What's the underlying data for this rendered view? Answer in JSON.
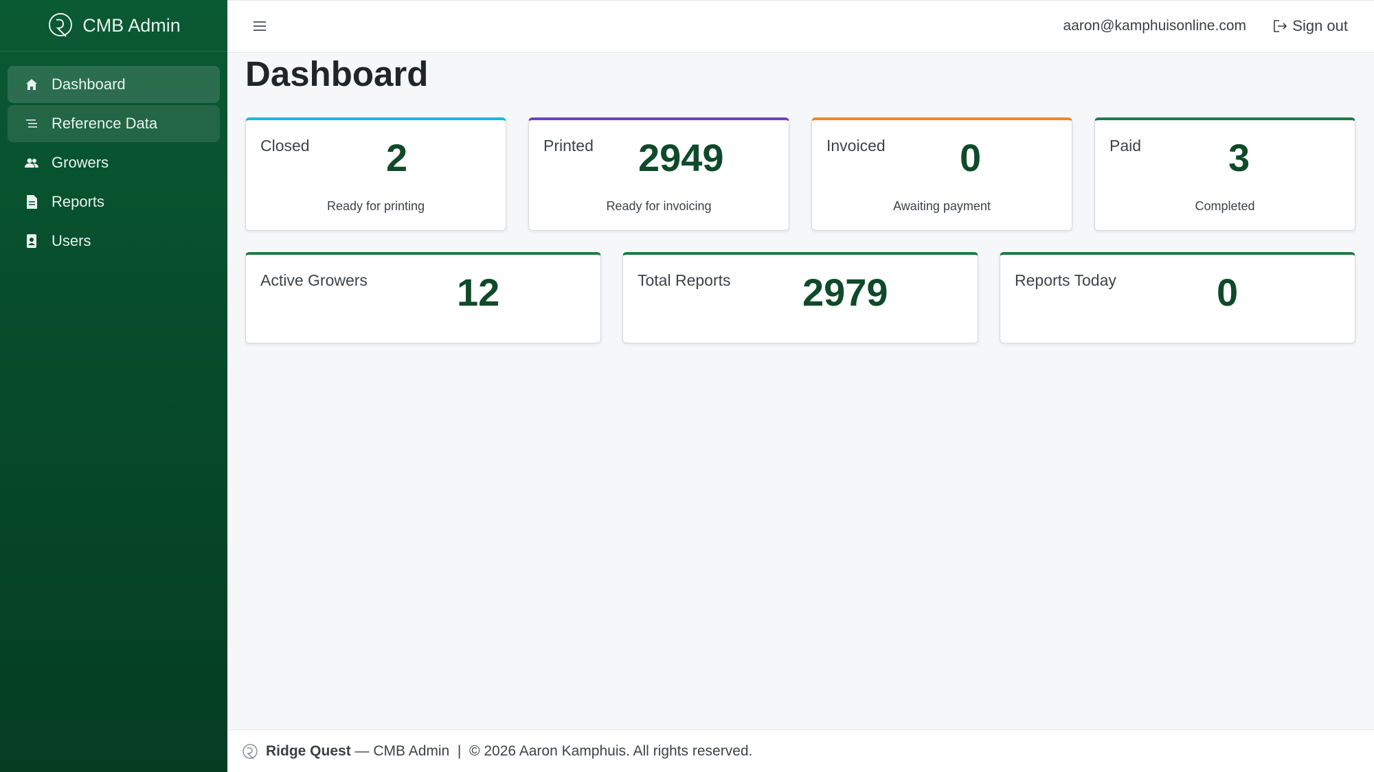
{
  "brand": {
    "name": "CMB Admin"
  },
  "sidebar": {
    "items": [
      {
        "label": "Dashboard",
        "icon": "home-icon"
      },
      {
        "label": "Reference Data",
        "icon": "list-icon"
      },
      {
        "label": "Growers",
        "icon": "users-icon"
      },
      {
        "label": "Reports",
        "icon": "document-icon"
      },
      {
        "label": "Users",
        "icon": "id-badge-icon"
      }
    ]
  },
  "topbar": {
    "user_email": "aaron@kamphuisonline.com",
    "signout_label": "Sign out"
  },
  "page": {
    "title": "Dashboard"
  },
  "status_cards": [
    {
      "label": "Closed",
      "value": "2",
      "sub": "Ready for printing",
      "accent": "#1ab8de"
    },
    {
      "label": "Printed",
      "value": "2949",
      "sub": "Ready for invoicing",
      "accent": "#6f42c1"
    },
    {
      "label": "Invoiced",
      "value": "0",
      "sub": "Awaiting payment",
      "accent": "#f0862a"
    },
    {
      "label": "Paid",
      "value": "3",
      "sub": "Completed",
      "accent": "#1e7a46"
    }
  ],
  "stat_cards": [
    {
      "label": "Active Growers",
      "value": "12"
    },
    {
      "label": "Total Reports",
      "value": "2979"
    },
    {
      "label": "Reports Today",
      "value": "0"
    }
  ],
  "footer": {
    "brand": "Ridge Quest",
    "text": "— CMB Admin  |  © 2026 Aaron Kamphuis. All rights reserved."
  },
  "colors": {
    "sidebar": "#0a5a33",
    "value_text": "#0f4a2a"
  }
}
